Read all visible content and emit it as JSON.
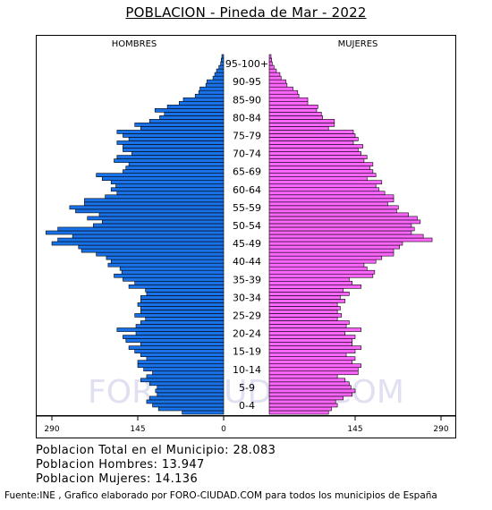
{
  "title": "POBLACION - Pineda de Mar - 2022",
  "watermark": "FORO-CIUDAD.COM",
  "stats": {
    "total": "Poblacion Total en el Municipio: 28.083",
    "hombres": "Poblacion Hombres: 13.947",
    "mujeres": "Poblacion Mujeres: 14.136"
  },
  "source": "Fuente:INE , Grafico elaborado por FORO-CIUDAD.COM para todos los municipios de España",
  "colors": {
    "male": "#1a72e8",
    "female": "#ff66ff",
    "stroke": "#000000"
  },
  "chart_data": {
    "type": "bar",
    "orientation": "horizontal-pyramid",
    "xlim": [
      0,
      290
    ],
    "xticks": [
      "290",
      "145",
      "0",
      "145",
      "290"
    ],
    "sides": [
      "HOMBRES",
      "MUJERES"
    ],
    "age_labels": [
      "0-4",
      "5-9",
      "10-14",
      "15-19",
      "20-24",
      "25-29",
      "30-34",
      "35-39",
      "40-44",
      "45-49",
      "50-54",
      "55-59",
      "60-64",
      "65-69",
      "70-74",
      "75-79",
      "80-84",
      "85-90",
      "90-95",
      "95-100+"
    ],
    "series": [
      {
        "name": "HOMBRES",
        "values": [
          70,
          110,
          120,
          130,
          125,
          112,
          115,
          112,
          125,
          140,
          130,
          120,
          135,
          145,
          145,
          130,
          140,
          150,
          160,
          140,
          165,
          170,
          148,
          180,
          148,
          140,
          132,
          150,
          140,
          140,
          145,
          140,
          140,
          130,
          132,
          160,
          150,
          170,
          185,
          172,
          175,
          195,
          190,
          198,
          215,
          240,
          245,
          290,
          280,
          255,
          300,
          280,
          220,
          205,
          230,
          210,
          250,
          260,
          235,
          235,
          200,
          180,
          190,
          182,
          190,
          205,
          215,
          170,
          165,
          160,
          185,
          180,
          155,
          170,
          170,
          180,
          160,
          170,
          180,
          140,
          150,
          125,
          108,
          100,
          116,
          95,
          75,
          68,
          48,
          42,
          40,
          30,
          28,
          18,
          15,
          12,
          8,
          5,
          4,
          3
        ]
      },
      {
        "name": "MUJERES",
        "values": [
          100,
          105,
          115,
          112,
          125,
          140,
          145,
          138,
          135,
          128,
          115,
          150,
          150,
          155,
          140,
          145,
          130,
          145,
          155,
          140,
          140,
          145,
          128,
          155,
          130,
          135,
          115,
          122,
          115,
          120,
          115,
          128,
          120,
          135,
          125,
          155,
          140,
          135,
          175,
          178,
          165,
          160,
          180,
          190,
          210,
          210,
          220,
          225,
          275,
          260,
          240,
          245,
          240,
          255,
          250,
          235,
          215,
          218,
          200,
          210,
          210,
          195,
          185,
          180,
          190,
          165,
          180,
          175,
          170,
          175,
          160,
          165,
          155,
          150,
          158,
          142,
          150,
          145,
          142,
          100,
          110,
          110,
          90,
          88,
          80,
          82,
          65,
          65,
          50,
          48,
          40,
          30,
          28,
          20,
          18,
          12,
          8,
          5,
          4,
          3
        ]
      }
    ]
  }
}
